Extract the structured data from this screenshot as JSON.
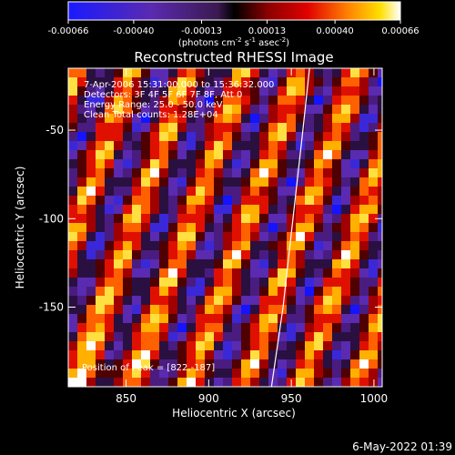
{
  "colorbar": {
    "ticks": [
      -0.00066,
      -0.0004,
      -0.00013,
      0.00013,
      0.0004,
      0.00066
    ],
    "tick_labels": [
      "-0.00066",
      "-0.00040",
      "-0.00013",
      "0.00013",
      "0.00040",
      "0.00066"
    ],
    "units_prefix": "(photons cm",
    "units_sup1": "-2",
    "units_mid": " s",
    "units_sup2": "-1",
    "units_mid2": " asec",
    "units_sup3": "-2",
    "units_suffix": ")",
    "range": [
      -0.00066,
      0.00066
    ]
  },
  "chart_data": {
    "type": "heatmap",
    "title": "Reconstructed RHESSI Image",
    "xlabel": "Heliocentric X (arcsec)",
    "ylabel": "Heliocentric Y (arcsec)",
    "xlim": [
      815,
      1005
    ],
    "ylim": [
      -195,
      -15
    ],
    "x_ticks": [
      850,
      900,
      950,
      1000
    ],
    "y_ticks": [
      -50,
      -100,
      -150
    ],
    "annotations": [
      "7-Apr-2006 15:31:00.000 to 15:36:32.000",
      "Detectors: 3F 4F 5F 6F 7F 8F, Att 0",
      "Energy Range: 25.0 - 50.0 keV",
      "Clean     Total counts: 1.28E+04"
    ],
    "peak_label": "Position of Peak = [822,-187]",
    "peak": [
      822,
      -187
    ],
    "limb_curve": [
      [
        938,
        -195
      ],
      [
        945,
        -150
      ],
      [
        951,
        -100
      ],
      [
        957,
        -50
      ],
      [
        961,
        -15
      ]
    ]
  },
  "footer": {
    "timestamp": "6-May-2022 01:39"
  }
}
